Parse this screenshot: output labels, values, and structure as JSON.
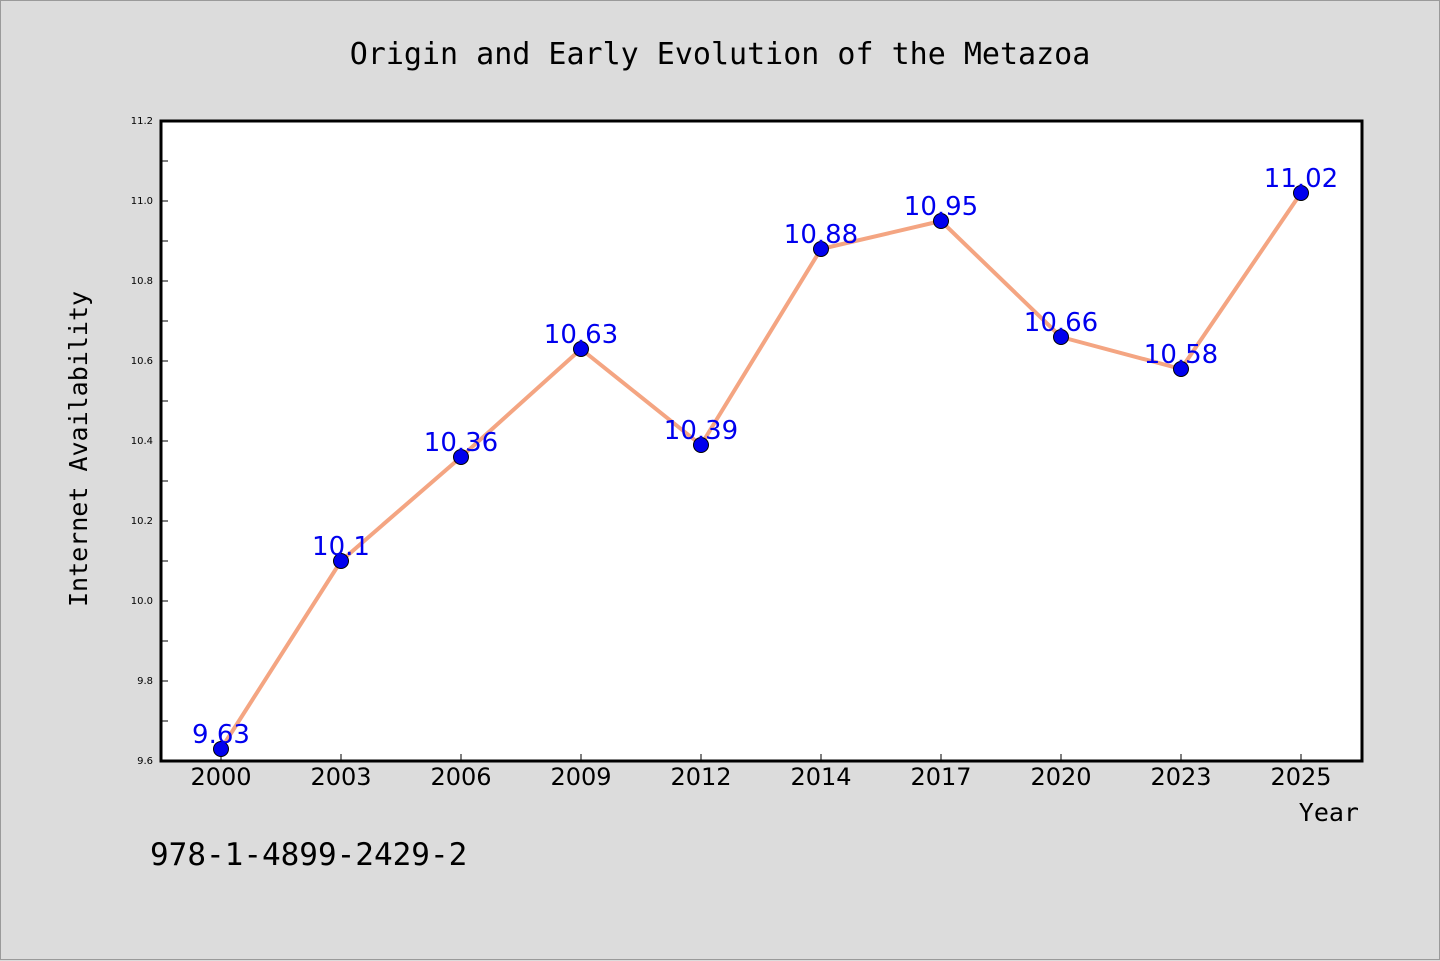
{
  "chart_data": {
    "type": "line",
    "title": "Origin and Early Evolution of the Metazoa",
    "xlabel": "Year",
    "ylabel": "Internet Availability",
    "categories": [
      "2000",
      "2003",
      "2006",
      "2009",
      "2012",
      "2014",
      "2017",
      "2020",
      "2023",
      "2025"
    ],
    "values": [
      9.63,
      10.1,
      10.36,
      10.63,
      10.39,
      10.88,
      10.95,
      10.66,
      10.58,
      11.02
    ],
    "data_labels": [
      "9.63",
      "10.1",
      "10.36",
      "10.63",
      "10.39",
      "10.88",
      "10.95",
      "10.66",
      "10.58",
      "11.02"
    ],
    "ylim": [
      9.6,
      11.2
    ],
    "y_ticks": [
      "9.6",
      "9.8",
      "10.0",
      "10.2",
      "10.4",
      "10.6",
      "10.8",
      "11.0",
      "11.2"
    ],
    "grid": false,
    "legend": "none",
    "colors": {
      "line": "#f4a582",
      "marker": "#0000ee",
      "data_label": "#0000ee",
      "background": "#dcdcdc",
      "plot_background": "#ffffff"
    }
  },
  "footer": {
    "identifier": "978-1-4899-2429-2"
  }
}
